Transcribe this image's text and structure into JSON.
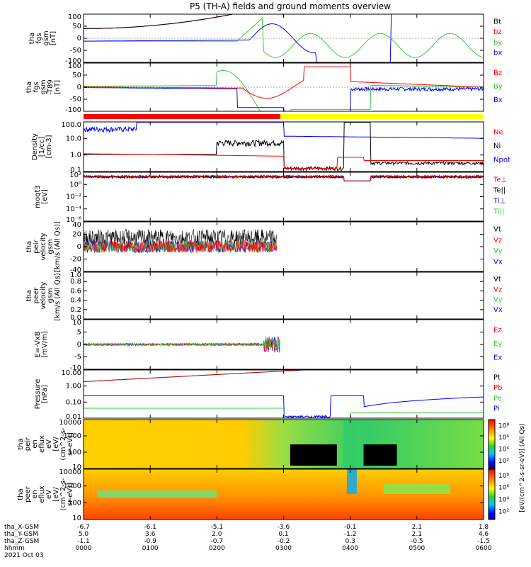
{
  "title": "P5 (TH-A) fields and ground moments overview",
  "colors": {
    "black": "#000000",
    "red": "#ff0000",
    "green": "#33cc33",
    "blue": "#0000ff",
    "yellow": "#ffff00"
  },
  "chart_data": [
    {
      "type": "line",
      "name": "fgs_gsm",
      "ylabel": [
        "tha",
        "fgs",
        "gsm",
        "[nT]"
      ],
      "yticks": [
        "100",
        "50",
        "0",
        "-50",
        "-100"
      ],
      "ylim": [
        -100,
        100
      ],
      "legend": [
        {
          "label": "Bt",
          "color": "#000000"
        },
        {
          "label": "bz",
          "color": "#ff0000"
        },
        {
          "label": "by",
          "color": "#33cc33"
        },
        {
          "label": "bx",
          "color": "#0000ff"
        }
      ]
    },
    {
      "type": "line",
      "name": "fgs_gsm_dif",
      "ylabel": [
        "tha",
        "fgs",
        "gsm",
        "-T89",
        "[nT]"
      ],
      "yticks": [
        "100",
        "50",
        "0",
        "-50",
        "-100"
      ],
      "ylim": [
        -130,
        130
      ],
      "legend": [
        {
          "label": "Bz",
          "color": "#ff0000"
        },
        {
          "label": "By",
          "color": "#33cc33"
        },
        {
          "label": "Bx",
          "color": "#0000ff"
        }
      ]
    },
    {
      "type": "line",
      "name": "density",
      "log": true,
      "ylabel": [
        "Density",
        "[1/cc]",
        "[cm-3]"
      ],
      "yticks": [
        "100.0",
        "10.0",
        "1.0",
        "0.1"
      ],
      "legend": [
        {
          "label": "Ne",
          "color": "#ff0000"
        },
        {
          "label": "Ni",
          "color": "#000000"
        },
        {
          "label": "Npot",
          "color": "#0000ff"
        }
      ]
    },
    {
      "type": "line",
      "name": "temperature",
      "log": true,
      "ylabel": [
        "moqt3",
        "[eV]"
      ],
      "yticks": [
        "10²",
        "10⁰",
        "10⁻²",
        "10⁻⁴",
        "10⁻⁶"
      ],
      "legend": [
        {
          "label": "Te⊥",
          "color": "#ff0000"
        },
        {
          "label": "Te||",
          "color": "#000000"
        },
        {
          "label": "Ti⊥",
          "color": "#0000ff"
        },
        {
          "label": "Ti||",
          "color": "#33cc33"
        }
      ]
    },
    {
      "type": "line",
      "name": "peir_velocity",
      "ylabel": [
        "tha",
        "peir",
        "velocity",
        "gsm",
        "[km/s (All Qs)]"
      ],
      "yticks": [
        "40",
        "20",
        "0",
        "-20",
        "-40"
      ],
      "ylim": [
        -40,
        40
      ],
      "legend": [
        {
          "label": "Vt",
          "color": "#000000"
        },
        {
          "label": "Vz",
          "color": "#ff0000"
        },
        {
          "label": "Vy",
          "color": "#33cc33"
        },
        {
          "label": "Vx",
          "color": "#0000ff"
        }
      ]
    },
    {
      "type": "line",
      "name": "peer_velocity",
      "ylabel": [
        "tha",
        "peer",
        "velocity",
        "gsm",
        "[km/s (All Qs)]"
      ],
      "yticks": [
        "1.0",
        "0.8",
        "0.6",
        "0.4",
        "0.2",
        "0.0"
      ],
      "ylim": [
        0,
        1
      ],
      "legend": [
        {
          "label": "Vt",
          "color": "#000000"
        },
        {
          "label": "Vz",
          "color": "#ff0000"
        },
        {
          "label": "Vy",
          "color": "#33cc33"
        },
        {
          "label": "Vx",
          "color": "#0000ff"
        }
      ]
    },
    {
      "type": "line",
      "name": "efield",
      "ylabel": [
        "E=-VxB",
        "[mV/m]"
      ],
      "yticks": [
        "10",
        "5",
        "0",
        "-5",
        "-10"
      ],
      "ylim": [
        -12,
        12
      ],
      "legend": [
        {
          "label": "Ez",
          "color": "#ff0000"
        },
        {
          "label": "Ey",
          "color": "#33cc33"
        },
        {
          "label": "Ex",
          "color": "#0000ff"
        }
      ]
    },
    {
      "type": "line",
      "name": "pressure",
      "log": true,
      "ylabel": [
        "Pressure",
        "[nPa]"
      ],
      "yticks": [
        "10.00",
        "1.00",
        "0.10",
        "0.01"
      ],
      "legend": [
        {
          "label": "Pt",
          "color": "#000000"
        },
        {
          "label": "Pb",
          "color": "#ff0000"
        },
        {
          "label": "Pe",
          "color": "#33cc33"
        },
        {
          "label": "Pi",
          "color": "#0000ff"
        }
      ]
    },
    {
      "type": "heatmap",
      "name": "peir_spectrogram",
      "ylabel": [
        "tha",
        "peir",
        "en",
        "eflux",
        "eV",
        "[eV/",
        "(cm^2-s-",
        "sr-eV)]"
      ],
      "yticks": [
        "10000",
        "1000",
        "100",
        "10"
      ],
      "colorbar_ticks": [
        "10⁸",
        "10⁶",
        "10⁴",
        "10²"
      ],
      "colorbar_label": "[eV/(cm^2-s-sr-eV)] (All Qs)"
    },
    {
      "type": "heatmap",
      "name": "peer_spectrogram",
      "ylabel": [
        "tha",
        "peer",
        "en",
        "eflux",
        "eV",
        "[eV/",
        "(cm^2-s-",
        "sr-eV)]"
      ],
      "yticks": [
        "10000",
        "1000",
        "100",
        "10"
      ],
      "colorbar_ticks": [
        "10⁸",
        "10⁶",
        "10⁴",
        "10²"
      ],
      "colorbar_label": "[eV/(cm^2-s-sr-eV)]"
    }
  ],
  "time_axis": {
    "rows": [
      {
        "label": "tha_X-GSM",
        "values": [
          "-6.7",
          "-6.1",
          "-5.1",
          "-3.6",
          "-0.1",
          "2.1",
          "1.8"
        ]
      },
      {
        "label": "tha_Y-GSM",
        "values": [
          "5.0",
          "3.6",
          "2.0",
          "0.1",
          "-1.2",
          "2.1",
          "4.6"
        ]
      },
      {
        "label": "tha_Z-GSM",
        "values": [
          "-1.1",
          "-0.9",
          "-0.7",
          "-0.2",
          "0.3",
          "-0.5",
          "-1.5"
        ]
      },
      {
        "label": "hhmm",
        "values": [
          "0000",
          "0100",
          "0200",
          "0300",
          "0400",
          "0500",
          "0600"
        ]
      }
    ],
    "date": "2021 Oct 03"
  }
}
